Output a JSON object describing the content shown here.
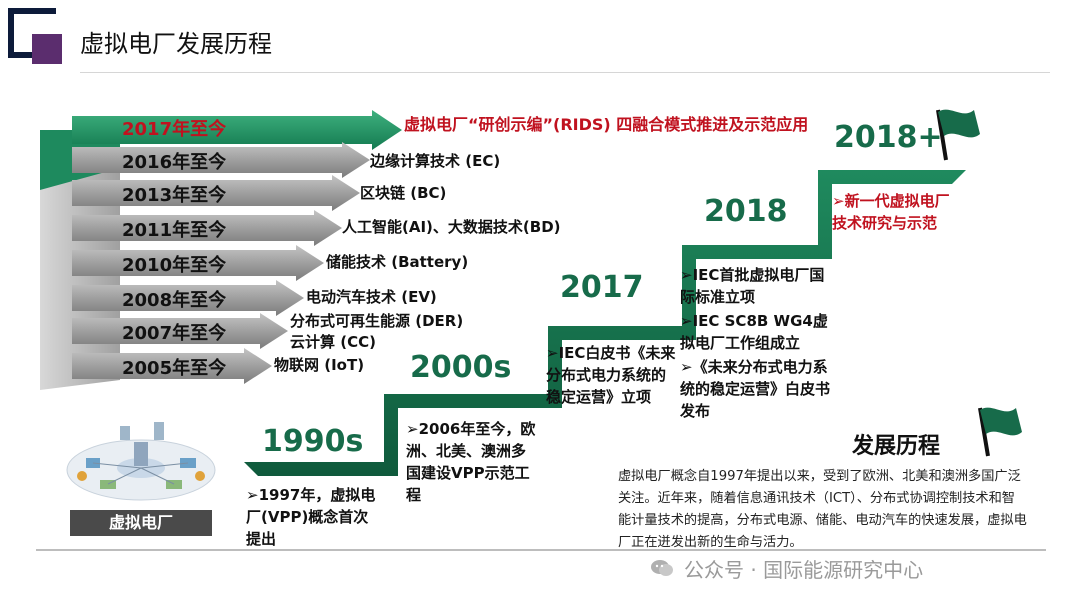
{
  "title": "虚拟电厂发展历程",
  "arrows": [
    {
      "year": "2017年至今",
      "tech": "虚拟电厂“研创示编”(RIDS) 四融合模式推进及示范应用"
    },
    {
      "year": "2016年至今",
      "tech": "边缘计算技术 (EC)"
    },
    {
      "year": "2013年至今",
      "tech": "区块链 (BC)"
    },
    {
      "year": "2011年至今",
      "tech": "人工智能(AI)、大数据技术(BD)"
    },
    {
      "year": "2010年至今",
      "tech": "储能技术 (Battery)"
    },
    {
      "year": "2008年至今",
      "tech": "电动汽车技术 (EV)"
    },
    {
      "year": "2007年至今",
      "tech": "分布式可再生能源 (DER)"
    },
    {
      "year": "",
      "tech": "云计算 (CC)"
    },
    {
      "year": "2005年至今",
      "tech": "物联网 (IoT)"
    }
  ],
  "image_caption": "虚拟电厂",
  "milestones": {
    "m1990s": {
      "label": "1990s",
      "note": "➢1997年，虚拟电厂(VPP)概念首次提出"
    },
    "m2000s": {
      "label": "2000s",
      "note": "➢2006年至今，欧洲、北美、澳洲多国建设VPP示范工程"
    },
    "m2017": {
      "label": "2017",
      "note": "➢IEC白皮书《未来分布式电力系统的稳定运营》立项"
    },
    "m2018": {
      "label": "2018",
      "note1": "➢IEC首批虚拟电厂国际标准立项",
      "note2": "➢IEC SC8B WG4虚拟电厂工作组成立",
      "note3": "➢《未来分布式电力系统的稳定运营》白皮书发布"
    },
    "m2018plus": {
      "label": "2018+",
      "note": "➢新一代虚拟电厂技术研究与示范"
    }
  },
  "development": {
    "title": "发展历程",
    "text": "虚拟电厂概念自1997年提出以来，受到了欧洲、北美和澳洲多国广泛关注。近年来，随着信息通讯技术（ICT）、分布式协调控制技术和智能计量技术的提高，分布式电源、储能、电动汽车的快速发展，虚拟电厂正在迸发出新的生命与活力。"
  },
  "watermark": "公众号 · 国际能源研究中心",
  "colors": {
    "stair_green": "#176b4a",
    "highlight_red": "#c0121f",
    "arrow_gray": "#8a8a8a"
  }
}
